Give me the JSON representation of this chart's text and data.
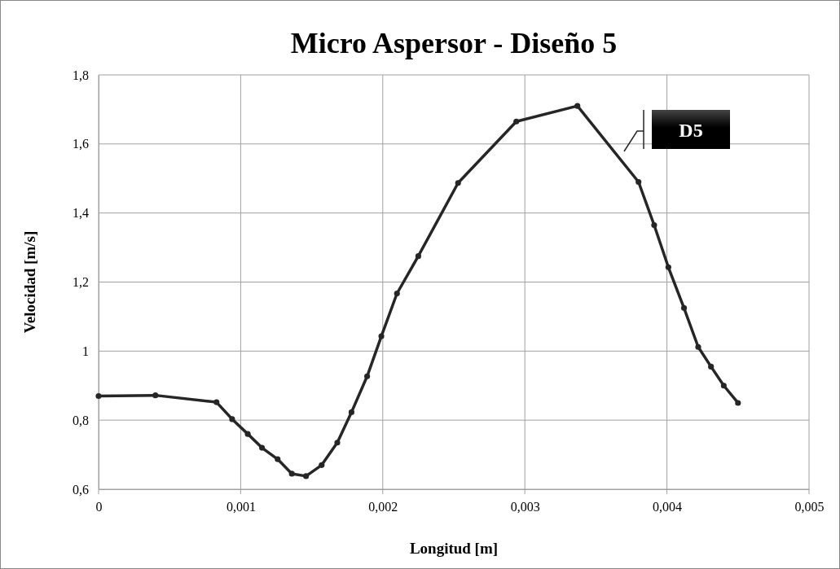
{
  "chart_data": {
    "type": "line",
    "title": "Micro Aspersor - Diseño 5",
    "xlabel": "Longitud [m]",
    "ylabel": "Velocidad [m/s]",
    "xlim": [
      0,
      0.005
    ],
    "xticks": [
      {
        "value": 0,
        "label": "0"
      },
      {
        "value": 0.001,
        "label": "0,001"
      },
      {
        "value": 0.002,
        "label": "0,002"
      },
      {
        "value": 0.003,
        "label": "0,003"
      },
      {
        "value": 0.004,
        "label": "0,004"
      },
      {
        "value": 0.005,
        "label": "0,005"
      }
    ],
    "ylim": [
      0.6,
      1.8
    ],
    "yticks": [
      {
        "value": 0.6,
        "label": "0,6"
      },
      {
        "value": 0.8,
        "label": "0,8"
      },
      {
        "value": 1,
        "label": "1"
      },
      {
        "value": 1.2,
        "label": "1,2"
      },
      {
        "value": 1.4,
        "label": "1,4"
      },
      {
        "value": 1.6,
        "label": "1,6"
      },
      {
        "value": 1.8,
        "label": "1,8"
      }
    ],
    "grid": true,
    "legend": "top right",
    "marker": "circle",
    "line_style": "solid",
    "series": [
      {
        "name": "D5",
        "color": "#262626",
        "x": [
          0,
          0.0004,
          0.00083,
          0.00094,
          0.00105,
          0.00115,
          0.00126,
          0.00136,
          0.00146,
          0.00157,
          0.00168,
          0.00178,
          0.00189,
          0.00199,
          0.0021,
          0.00225,
          0.00253,
          0.00294,
          0.00337,
          0.0038,
          0.00391,
          0.00401,
          0.00412,
          0.00422,
          0.00431,
          0.0044,
          0.0045
        ],
        "values": [
          0.87,
          0.872,
          0.852,
          0.803,
          0.76,
          0.72,
          0.687,
          0.645,
          0.638,
          0.67,
          0.735,
          0.823,
          0.927,
          1.043,
          1.167,
          1.275,
          1.487,
          1.665,
          1.71,
          1.49,
          1.365,
          1.243,
          1.125,
          1.012,
          0.955,
          0.9,
          0.85
        ]
      }
    ]
  }
}
